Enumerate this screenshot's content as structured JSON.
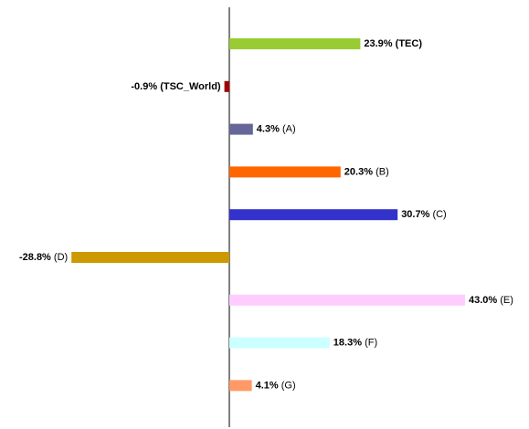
{
  "chart_data": {
    "type": "bar",
    "orientation": "horizontal",
    "categories": [
      "(TEC)",
      "(TSC_World)",
      "(A)",
      "(B)",
      "(C)",
      "(D)",
      "(E)",
      "(F)",
      "(G)"
    ],
    "values": [
      23.9,
      -0.9,
      4.3,
      20.3,
      30.7,
      -28.8,
      43.0,
      18.3,
      4.1
    ],
    "value_labels": [
      "23.9%",
      "-0.9%",
      "4.3%",
      "20.3%",
      "30.7%",
      "-28.8%",
      "43.0%",
      "18.3%",
      "4.1%"
    ],
    "colors": [
      "#99cc33",
      "#a00000",
      "#666699",
      "#ff6600",
      "#3333cc",
      "#cc9900",
      "#ffccff",
      "#ccffff",
      "#ff9966"
    ],
    "bold_category": [
      true,
      true,
      false,
      false,
      false,
      false,
      false,
      false,
      false
    ]
  }
}
